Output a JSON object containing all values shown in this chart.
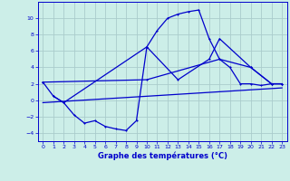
{
  "xlabel": "Graphe des températures (°C)",
  "background_color": "#cceee8",
  "grid_color": "#aacccc",
  "line_color": "#0000cc",
  "xlim": [
    -0.5,
    23.5
  ],
  "ylim": [
    -5,
    12
  ],
  "yticks": [
    -4,
    -2,
    0,
    2,
    4,
    6,
    8,
    10
  ],
  "xticks": [
    0,
    1,
    2,
    3,
    4,
    5,
    6,
    7,
    8,
    9,
    10,
    11,
    12,
    13,
    14,
    15,
    16,
    17,
    18,
    19,
    20,
    21,
    22,
    23
  ],
  "series1_x": [
    0,
    1,
    2,
    3,
    4,
    5,
    6,
    7,
    8,
    9,
    10,
    11,
    12,
    13,
    14,
    15,
    16,
    17,
    18,
    19,
    20,
    21,
    22,
    23
  ],
  "series1_y": [
    2.2,
    0.5,
    -0.3,
    -1.8,
    -2.8,
    -2.5,
    -3.2,
    -3.5,
    -3.7,
    -2.5,
    6.5,
    8.5,
    10.0,
    10.5,
    10.8,
    11.0,
    7.5,
    5.0,
    4.0,
    2.0,
    2.0,
    1.8,
    2.0,
    2.0
  ],
  "series2_x": [
    1,
    2,
    10,
    13,
    16,
    17,
    20,
    22,
    23
  ],
  "series2_y": [
    0.5,
    -0.3,
    6.5,
    2.5,
    5.0,
    7.5,
    4.0,
    2.0,
    2.0
  ],
  "series3_x": [
    0,
    10,
    17,
    20,
    22,
    23
  ],
  "series3_y": [
    2.2,
    2.5,
    5.0,
    4.0,
    2.0,
    2.0
  ],
  "series4_x": [
    0,
    23
  ],
  "series4_y": [
    -0.3,
    1.5
  ]
}
